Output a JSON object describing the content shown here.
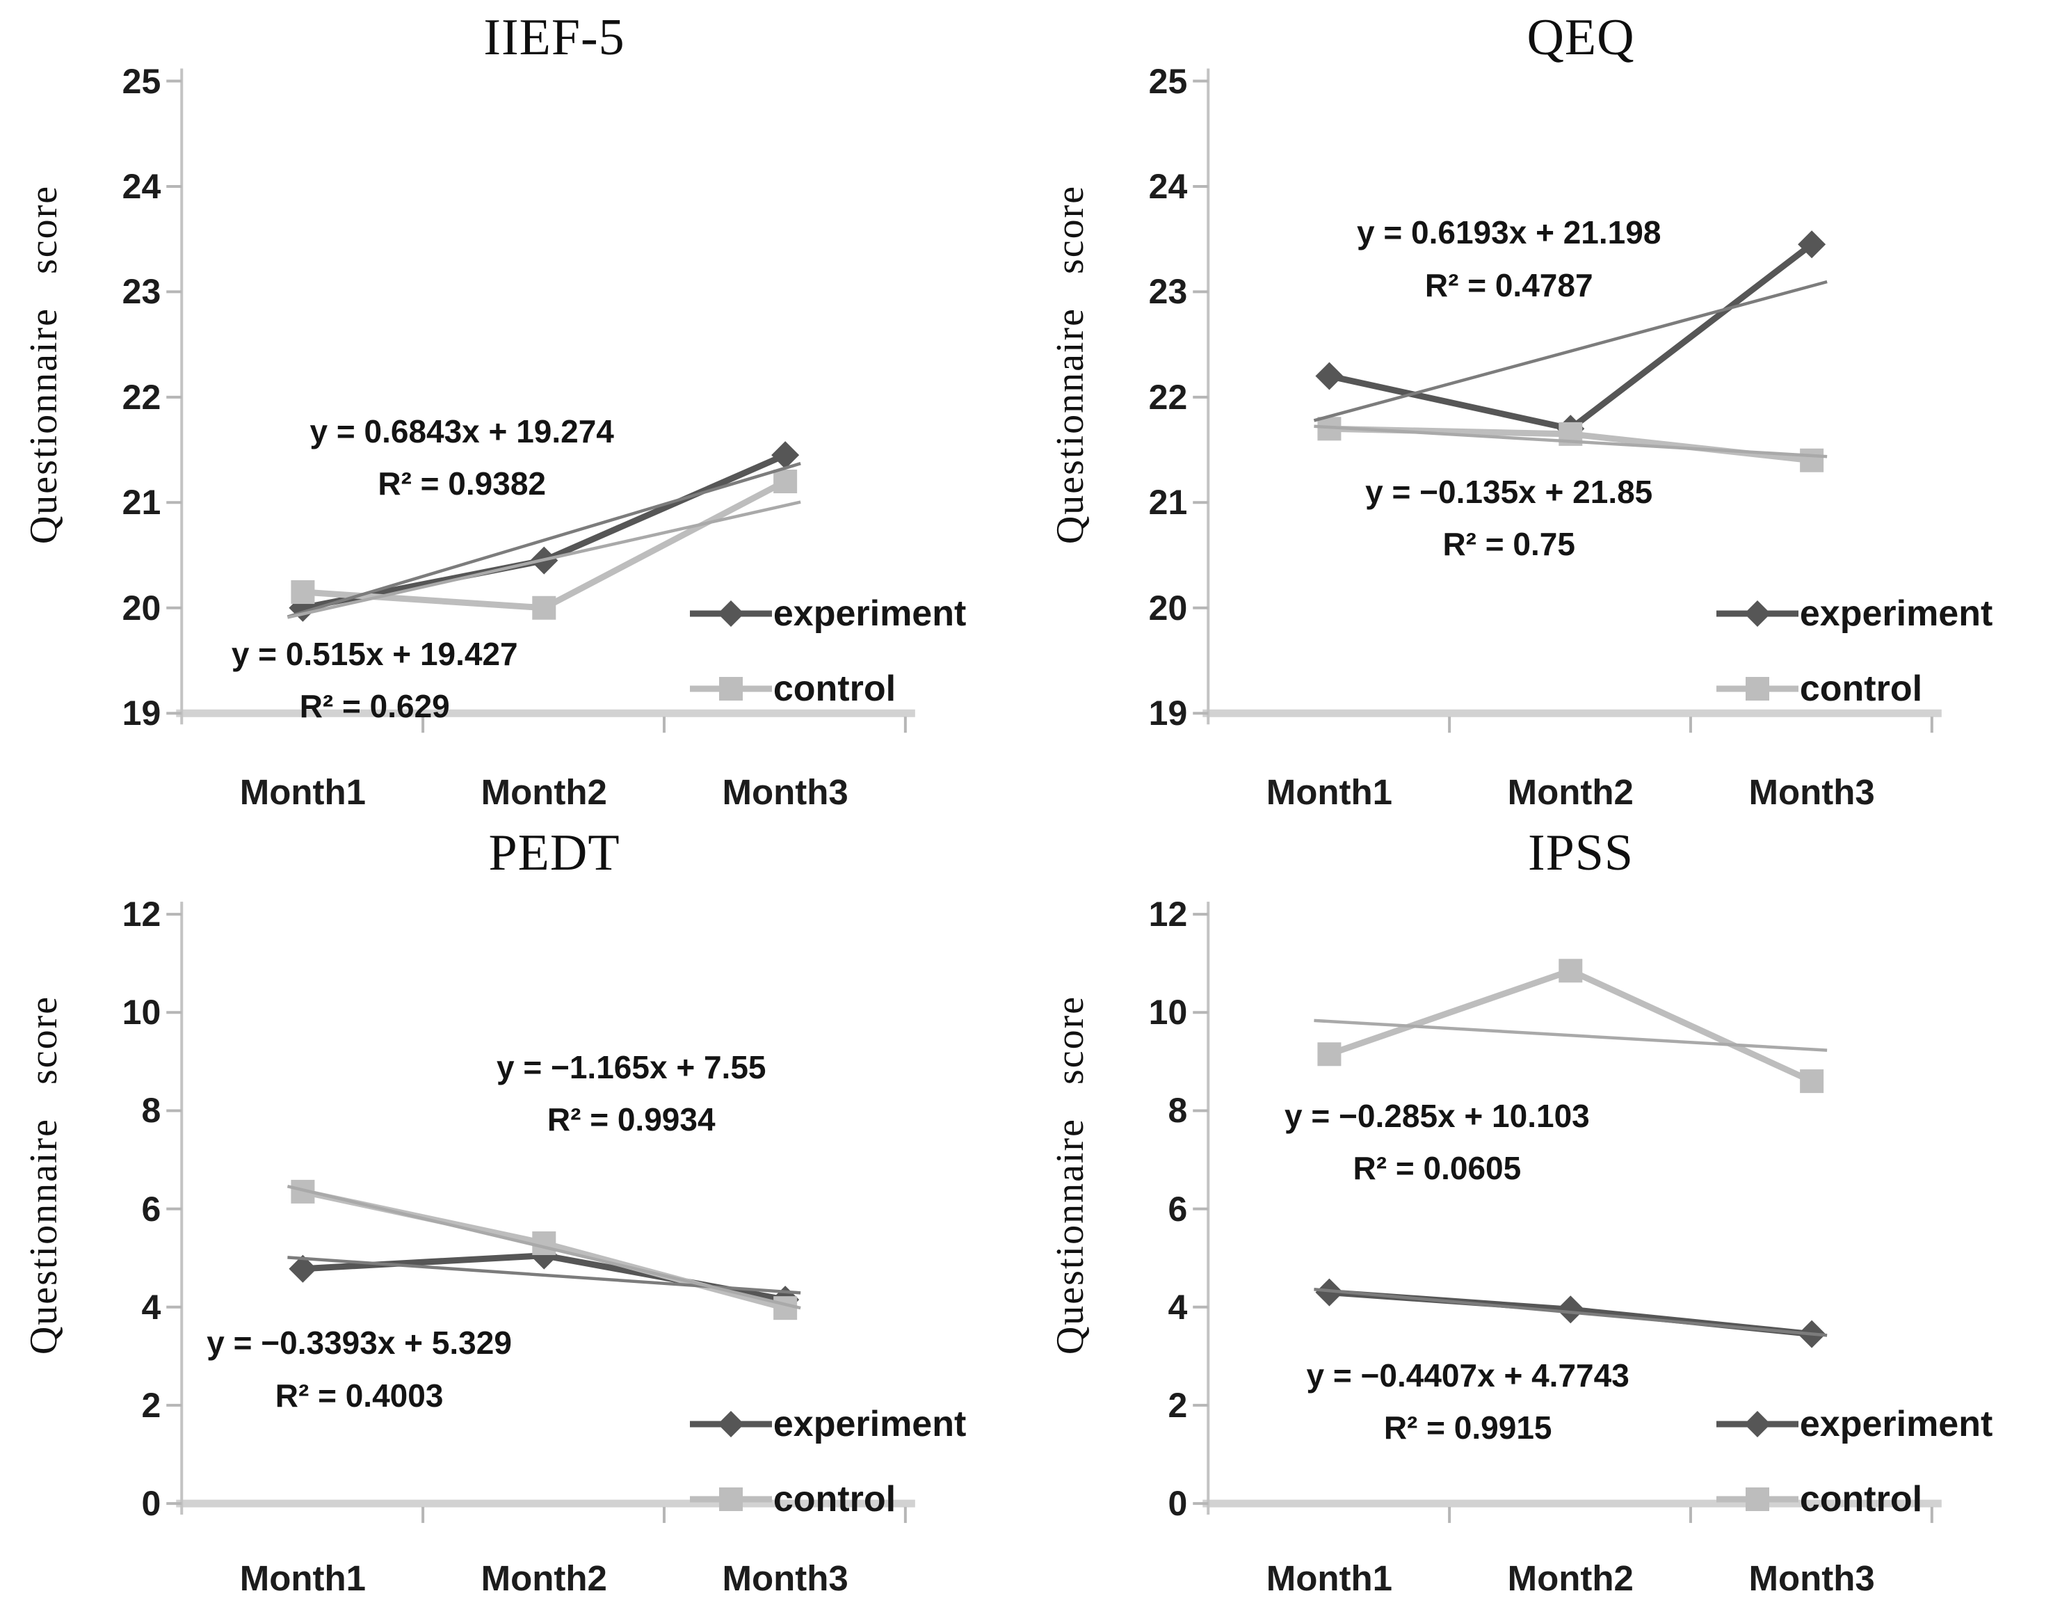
{
  "figure": {
    "legend": {
      "items": [
        {
          "name": "experiment",
          "label": "experiment",
          "marker": "diamond"
        },
        {
          "name": "control",
          "label": "control",
          "marker": "square"
        }
      ]
    },
    "colors": {
      "experiment": "#565656",
      "control": "#bdbdbd",
      "trend_experiment": "#7c7c7c",
      "trend_control": "#a9a9a9",
      "axis": "#d2d2d2",
      "axis_y": "#c3c3c3",
      "tick": "#b6b6b6",
      "text": "#141414"
    }
  },
  "chart_data": [
    {
      "type": "line",
      "title": "IIEF-5",
      "ylabel": "Questionnaire   score",
      "categories": [
        "Month1",
        "Month2",
        "Month3"
      ],
      "ylim": [
        19,
        25
      ],
      "yticks": [
        19,
        20,
        21,
        22,
        23,
        24,
        25
      ],
      "grid": false,
      "legend_position": "inside-right",
      "series": [
        {
          "name": "experiment",
          "marker": "diamond",
          "values": [
            20.0,
            20.45,
            21.45
          ]
        },
        {
          "name": "control",
          "marker": "square",
          "values": [
            20.15,
            20.0,
            21.2
          ]
        }
      ],
      "trendlines": [
        {
          "series": "experiment",
          "slope": 0.6843,
          "intercept": 19.274
        },
        {
          "series": "control",
          "slope": 0.515,
          "intercept": 19.427
        }
      ],
      "annotations": [
        {
          "series": "experiment",
          "lines": [
            "y = 0.6843x + 19.274",
            "R² = 0.9382"
          ],
          "x": 0.45,
          "y": 0.5
        },
        {
          "series": "control",
          "lines": [
            "y = 0.515x + 19.427",
            "R² = 0.629"
          ],
          "x": 0.365,
          "y": 0.775
        }
      ]
    },
    {
      "type": "line",
      "title": "QEQ",
      "ylabel": "Questionnaire   score",
      "categories": [
        "Month1",
        "Month2",
        "Month3"
      ],
      "ylim": [
        19,
        25
      ],
      "yticks": [
        19,
        20,
        21,
        22,
        23,
        24,
        25
      ],
      "grid": false,
      "legend_position": "inside-right",
      "series": [
        {
          "name": "experiment",
          "marker": "diamond",
          "values": [
            22.2,
            21.7,
            23.45
          ]
        },
        {
          "name": "control",
          "marker": "square",
          "values": [
            21.7,
            21.65,
            21.4
          ]
        }
      ],
      "trendlines": [
        {
          "series": "experiment",
          "slope": 0.6193,
          "intercept": 21.198
        },
        {
          "series": "control",
          "slope": -0.135,
          "intercept": 21.85
        }
      ],
      "annotations": [
        {
          "series": "experiment",
          "lines": [
            "y = 0.6193x + 21.198",
            "R² = 0.4787"
          ],
          "x": 0.47,
          "y": 0.255
        },
        {
          "series": "control",
          "lines": [
            "y = −0.135x + 21.85",
            "R² = 0.75"
          ],
          "x": 0.47,
          "y": 0.575
        }
      ]
    },
    {
      "type": "line",
      "title": "PEDT",
      "ylabel": "Questionnaire   score",
      "categories": [
        "Month1",
        "Month2",
        "Month3"
      ],
      "ylim": [
        0,
        12
      ],
      "yticks": [
        0,
        2,
        4,
        6,
        8,
        10,
        12
      ],
      "grid": false,
      "legend_position": "inside-right",
      "series": [
        {
          "name": "experiment",
          "marker": "diamond",
          "values": [
            4.78,
            5.05,
            4.15
          ]
        },
        {
          "name": "control",
          "marker": "square",
          "values": [
            6.35,
            5.3,
            3.98
          ]
        }
      ],
      "trendlines": [
        {
          "series": "experiment",
          "slope": -0.3393,
          "intercept": 5.329
        },
        {
          "series": "control",
          "slope": -1.165,
          "intercept": 7.55
        }
      ],
      "annotations": [
        {
          "series": "control",
          "lines": [
            "y = −1.165x + 7.55",
            "R² = 0.9934"
          ],
          "x": 0.615,
          "y": 0.285
        },
        {
          "series": "experiment",
          "lines": [
            "y = −0.3393x + 5.329",
            "R² = 0.4003"
          ],
          "x": 0.35,
          "y": 0.625
        }
      ]
    },
    {
      "type": "line",
      "title": "IPSS",
      "ylabel": "Questionnaire   score",
      "categories": [
        "Month1",
        "Month2",
        "Month3"
      ],
      "ylim": [
        0,
        12
      ],
      "yticks": [
        0,
        2,
        4,
        6,
        8,
        10,
        12
      ],
      "grid": false,
      "legend_position": "inside-right",
      "series": [
        {
          "name": "experiment",
          "marker": "diamond",
          "values": [
            4.3,
            3.95,
            3.45
          ]
        },
        {
          "name": "control",
          "marker": "square",
          "values": [
            9.15,
            10.85,
            8.6
          ]
        }
      ],
      "trendlines": [
        {
          "series": "experiment",
          "slope": -0.4407,
          "intercept": 4.7743
        },
        {
          "series": "control",
          "slope": -0.285,
          "intercept": 10.103
        }
      ],
      "annotations": [
        {
          "series": "control",
          "lines": [
            "y = −0.285x + 10.103",
            "R² = 0.0605"
          ],
          "x": 0.4,
          "y": 0.345
        },
        {
          "series": "experiment",
          "lines": [
            "y = −0.4407x + 4.7743",
            "R² = 0.9915"
          ],
          "x": 0.43,
          "y": 0.665
        }
      ]
    }
  ]
}
